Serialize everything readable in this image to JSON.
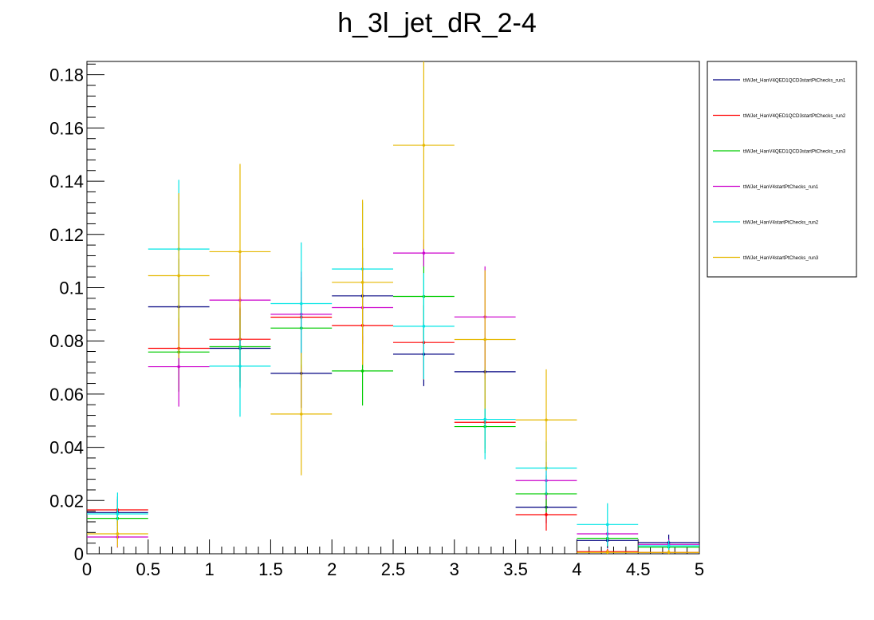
{
  "chart_data": {
    "type": "scatter",
    "title": "h_3l_jet_dR_2-4",
    "xlabel": "",
    "ylabel": "",
    "xlim": [
      0,
      5
    ],
    "ylim": [
      0,
      0.185
    ],
    "x_ticks": [
      "0",
      "0.5",
      "1",
      "1.5",
      "2",
      "2.5",
      "3",
      "3.5",
      "4",
      "4.5",
      "5"
    ],
    "y_ticks": [
      "0",
      "0.02",
      "0.04",
      "0.06",
      "0.08",
      "0.1",
      "0.12",
      "0.14",
      "0.16",
      "0.18"
    ],
    "grid": false,
    "legend_position": "top-right",
    "bin_edges": [
      0,
      0.5,
      1,
      1.5,
      2,
      2.5,
      3,
      3.5,
      4,
      4.5,
      5
    ],
    "series": [
      {
        "name": "ttWJet_HanV4QED1QCD3startPtChecks_run1",
        "color": "#000080",
        "values": [
          0.0155,
          0.0928,
          0.0772,
          0.0678,
          0.0969,
          0.075,
          0.0684,
          0.0175,
          0.005,
          0.0042
        ],
        "errors": [
          0.005,
          0.018,
          0.015,
          0.013,
          0.018,
          0.012,
          0.013,
          0.006,
          0.003,
          0.003
        ]
      },
      {
        "name": "ttWJet_HanV4QED1QCD3startPtChecks_run2",
        "color": "#ff0000",
        "values": [
          0.0165,
          0.0772,
          0.0806,
          0.0889,
          0.0858,
          0.0794,
          0.0494,
          0.0147,
          0.0008,
          0.0005
        ],
        "errors": [
          0.005,
          0.016,
          0.016,
          0.015,
          0.016,
          0.014,
          0.01,
          0.006,
          0.001,
          0.001
        ]
      },
      {
        "name": "ttWJet_HanV4QED1QCD3startPtChecks_run3",
        "color": "#00cc00",
        "values": [
          0.0133,
          0.0758,
          0.0778,
          0.0848,
          0.0687,
          0.0967,
          0.0478,
          0.0225,
          0.0058,
          0.0025
        ],
        "errors": [
          0.005,
          0.015,
          0.015,
          0.015,
          0.013,
          0.016,
          0.01,
          0.007,
          0.003,
          0.002
        ]
      },
      {
        "name": "ttWJet_HanV4startPtChecks_run1",
        "color": "#cc00cc",
        "values": [
          0.0063,
          0.0703,
          0.0953,
          0.09,
          0.0925,
          0.113,
          0.089,
          0.0275,
          0.0075,
          0.0035
        ],
        "errors": [
          0.004,
          0.015,
          0.017,
          0.016,
          0.017,
          0.005,
          0.019,
          0.007,
          0.004,
          0.002
        ]
      },
      {
        "name": "ttWJet_HanV4startPtChecks_run2",
        "color": "#00e5e5",
        "values": [
          0.015,
          0.1145,
          0.0705,
          0.094,
          0.107,
          0.0855,
          0.0505,
          0.0322,
          0.011,
          0.003
        ],
        "errors": [
          0.008,
          0.026,
          0.019,
          0.023,
          0.025,
          0.02,
          0.015,
          0.01,
          0.008,
          0.002
        ]
      },
      {
        "name": "ttWJet_HanV4startPtChecks_run3",
        "color": "#e5b800",
        "values": [
          0.0075,
          0.1045,
          0.1135,
          0.0525,
          0.102,
          0.1535,
          0.0805,
          0.0503,
          0.0005,
          0.0005
        ],
        "errors": [
          0.005,
          0.031,
          0.033,
          0.023,
          0.031,
          0.039,
          0.026,
          0.019,
          0.001,
          0.001
        ]
      }
    ]
  }
}
